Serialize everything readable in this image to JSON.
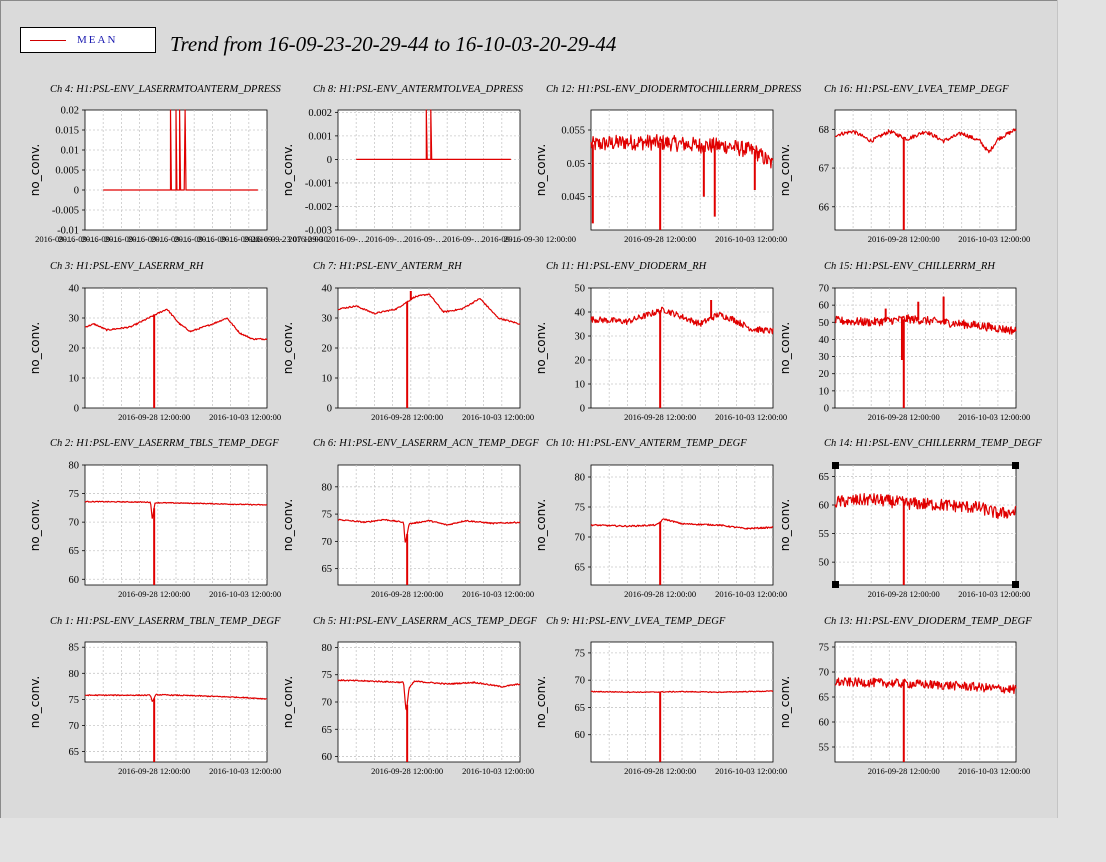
{
  "title": "Trend from 16-09-23-20-29-44 to 16-10-03-20-29-44",
  "legend": {
    "label": "MEAN",
    "color": "#d00000"
  },
  "series_color": "#e00000",
  "chart_data": [
    {
      "id": "ch4",
      "type": "line",
      "title": "Ch 4: H1:PSL-ENV_LASERRMTOANTERM_DPRESS",
      "ylabel": "no_conv.",
      "ylim": [
        -0.01,
        0.02
      ],
      "yticks": [
        0.02,
        0.015,
        0.01,
        0.005,
        0,
        -0.005,
        -0.01
      ],
      "ytick_labels": [
        "0.02",
        "0.015",
        "0.01",
        "0.005",
        "0",
        "-0.005",
        "-0.01"
      ],
      "xticks": [
        "2016-09-…",
        "2016-09-…",
        "2016-09-…",
        "2016-09-…",
        "2016-09-…",
        "2016-09-…",
        "2016-09-…",
        "2016-09-…",
        "2016-09-…",
        "2016-09-…",
        "2016-09-23 07 12:00"
      ],
      "x_span": [
        0.1,
        0.95
      ],
      "points": [
        [
          0.1,
          0
        ],
        [
          0.47,
          0
        ],
        [
          0.47,
          0.021
        ],
        [
          0.475,
          0
        ],
        [
          0.5,
          0
        ],
        [
          0.5,
          0.021
        ],
        [
          0.505,
          0
        ],
        [
          0.52,
          0
        ],
        [
          0.52,
          0.021
        ],
        [
          0.525,
          0
        ],
        [
          0.545,
          0
        ],
        [
          0.55,
          0.021
        ],
        [
          0.555,
          0
        ],
        [
          0.58,
          0
        ],
        [
          0.95,
          0
        ]
      ]
    },
    {
      "id": "ch8",
      "type": "line",
      "title": "Ch 8: H1:PSL-ENV_ANTERMTOLVEA_DPRESS",
      "ylabel": "no_conv.",
      "ylim": [
        -0.003,
        0.0021
      ],
      "yticks": [
        0.002,
        0.001,
        0,
        -0.001,
        -0.002,
        -0.003
      ],
      "ytick_labels": [
        "0.002",
        "0.001",
        "0",
        "-0.001",
        "-0.002",
        "-0.003"
      ],
      "xticks": [
        "2016-09-30",
        "2016-09-…",
        "2016-09-…",
        "2016-09-…",
        "2016-09-…",
        "2016-09-…",
        "2016-09-30 12:00:00"
      ],
      "x_span": [
        0.1,
        0.95
      ],
      "points": [
        [
          0.1,
          0
        ],
        [
          0.485,
          0
        ],
        [
          0.485,
          0.0021
        ],
        [
          0.49,
          0
        ],
        [
          0.51,
          0
        ],
        [
          0.51,
          0.0021
        ],
        [
          0.515,
          0
        ],
        [
          0.95,
          0
        ]
      ]
    },
    {
      "id": "ch12",
      "type": "line",
      "title": "Ch 12: H1:PSL-ENV_DIODERMTOCHILLERRM_DPRESS",
      "ylabel": "no_conv.",
      "ylim": [
        0.04,
        0.058
      ],
      "yticks": [
        0.055,
        0.05,
        0.045
      ],
      "ytick_labels": [
        "0.055",
        "0.05",
        "0.045"
      ],
      "xticks": [
        "2016-09-28 12:00:00",
        "2016-10-03 12:00:00"
      ],
      "noise": 0.0012,
      "baseline": [
        [
          0,
          0.0528
        ],
        [
          0.2,
          0.0532
        ],
        [
          0.4,
          0.0531
        ],
        [
          0.6,
          0.0527
        ],
        [
          0.75,
          0.0526
        ],
        [
          0.9,
          0.0518
        ],
        [
          1,
          0.0498
        ]
      ],
      "spikes": [
        [
          0.38,
          0.04
        ],
        [
          0.01,
          0.041
        ],
        [
          0.62,
          0.045
        ],
        [
          0.68,
          0.042
        ],
        [
          0.9,
          0.046
        ]
      ]
    },
    {
      "id": "ch16",
      "type": "line",
      "title": "Ch 16: H1:PSL-ENV_LVEA_TEMP_DEGF",
      "ylabel": "no_conv.",
      "ylim": [
        65.4,
        68.5
      ],
      "yticks": [
        68,
        67,
        66
      ],
      "ytick_labels": [
        "68",
        "67",
        "66"
      ],
      "xticks": [
        "2016-09-28 12:00:00",
        "2016-10-03 12:00:00"
      ],
      "noise": 0.05,
      "baseline": [
        [
          0,
          67.85
        ],
        [
          0.1,
          67.95
        ],
        [
          0.2,
          67.7
        ],
        [
          0.3,
          67.95
        ],
        [
          0.4,
          67.75
        ],
        [
          0.5,
          67.95
        ],
        [
          0.6,
          67.7
        ],
        [
          0.7,
          67.9
        ],
        [
          0.8,
          67.7
        ],
        [
          0.85,
          67.4
        ],
        [
          0.9,
          67.75
        ],
        [
          1,
          68.0
        ]
      ],
      "spikes": [
        [
          0.38,
          65.4
        ]
      ]
    },
    {
      "id": "ch3",
      "type": "line",
      "title": "Ch 3: H1:PSL-ENV_LASERRM_RH",
      "ylabel": "no_conv.",
      "ylim": [
        0,
        40
      ],
      "yticks": [
        40,
        30,
        20,
        10,
        0
      ],
      "ytick_labels": [
        "40",
        "30",
        "20",
        "10",
        "0"
      ],
      "xticks": [
        "2016-09-28 12:00:00",
        "2016-10-03 12:00:00"
      ],
      "noise": 0.25,
      "baseline": [
        [
          0,
          27
        ],
        [
          0.05,
          28
        ],
        [
          0.12,
          26
        ],
        [
          0.25,
          27
        ],
        [
          0.35,
          30
        ],
        [
          0.45,
          33
        ],
        [
          0.52,
          28
        ],
        [
          0.58,
          25.5
        ],
        [
          0.7,
          28
        ],
        [
          0.78,
          30
        ],
        [
          0.85,
          25
        ],
        [
          0.92,
          23
        ],
        [
          1,
          23
        ]
      ],
      "spikes": [
        [
          0.38,
          0
        ]
      ]
    },
    {
      "id": "ch7",
      "type": "line",
      "title": "Ch 7: H1:PSL-ENV_ANTERM_RH",
      "ylabel": "no_conv.",
      "ylim": [
        0,
        40
      ],
      "yticks": [
        40,
        30,
        20,
        10,
        0
      ],
      "ytick_labels": [
        "40",
        "30",
        "20",
        "10",
        "0"
      ],
      "xticks": [
        "2016-09-28 12:00:00",
        "2016-10-03 12:00:00"
      ],
      "noise": 0.25,
      "baseline": [
        [
          0,
          33
        ],
        [
          0.1,
          34
        ],
        [
          0.2,
          31.5
        ],
        [
          0.32,
          33
        ],
        [
          0.42,
          37
        ],
        [
          0.5,
          38
        ],
        [
          0.58,
          32
        ],
        [
          0.68,
          33
        ],
        [
          0.78,
          36.5
        ],
        [
          0.88,
          30
        ],
        [
          1,
          28
        ]
      ],
      "spikes": [
        [
          0.38,
          0
        ],
        [
          0.4,
          39
        ]
      ]
    },
    {
      "id": "ch11",
      "type": "line",
      "title": "Ch 11: H1:PSL-ENV_DIODERM_RH",
      "ylabel": "no_conv.",
      "ylim": [
        0,
        50
      ],
      "yticks": [
        50,
        40,
        30,
        20,
        10,
        0
      ],
      "ytick_labels": [
        "50",
        "40",
        "30",
        "20",
        "10",
        "0"
      ],
      "xticks": [
        "2016-09-28 12:00:00",
        "2016-10-03 12:00:00"
      ],
      "noise": 1.3,
      "baseline": [
        [
          0,
          37
        ],
        [
          0.2,
          36
        ],
        [
          0.4,
          41
        ],
        [
          0.5,
          38
        ],
        [
          0.6,
          35
        ],
        [
          0.7,
          39
        ],
        [
          0.78,
          37
        ],
        [
          0.88,
          33
        ],
        [
          1,
          32
        ]
      ],
      "spikes": [
        [
          0.38,
          0
        ],
        [
          0.66,
          45
        ]
      ]
    },
    {
      "id": "ch15",
      "type": "line",
      "title": "Ch 15: H1:PSL-ENV_CHILLERRM_RH",
      "ylabel": "no_conv.",
      "ylim": [
        0,
        70
      ],
      "yticks": [
        70,
        60,
        50,
        40,
        30,
        20,
        10,
        0
      ],
      "ytick_labels": [
        "70",
        "60",
        "50",
        "40",
        "30",
        "20",
        "10",
        "0"
      ],
      "xticks": [
        "2016-09-28 12:00:00",
        "2016-10-03 12:00:00"
      ],
      "noise": 2.5,
      "baseline": [
        [
          0,
          51
        ],
        [
          0.2,
          50
        ],
        [
          0.4,
          52
        ],
        [
          0.6,
          50
        ],
        [
          0.8,
          48
        ],
        [
          1,
          45
        ]
      ],
      "spikes": [
        [
          0.38,
          0
        ],
        [
          0.37,
          28
        ],
        [
          0.46,
          62
        ],
        [
          0.6,
          65
        ],
        [
          0.28,
          58
        ]
      ]
    },
    {
      "id": "ch2",
      "type": "line",
      "title": "Ch 2: H1:PSL-ENV_LASERRM_TBLS_TEMP_DEGF",
      "ylabel": "no_conv.",
      "ylim": [
        59,
        80
      ],
      "yticks": [
        80,
        75,
        70,
        65,
        60
      ],
      "ytick_labels": [
        "80",
        "75",
        "70",
        "65",
        "60"
      ],
      "xticks": [
        "2016-09-28 12:00:00",
        "2016-10-03 12:00:00"
      ],
      "noise": 0.08,
      "baseline": [
        [
          0,
          73.6
        ],
        [
          0.36,
          73.5
        ],
        [
          0.37,
          70.5
        ],
        [
          0.385,
          73.4
        ],
        [
          0.6,
          73.3
        ],
        [
          1,
          73.0
        ]
      ],
      "spikes": [
        [
          0.38,
          59
        ]
      ]
    },
    {
      "id": "ch6",
      "type": "line",
      "title": "Ch 6: H1:PSL-ENV_LASERRM_ACN_TEMP_DEGF",
      "ylabel": "no_conv.",
      "ylim": [
        62,
        84
      ],
      "yticks": [
        80,
        75,
        70,
        65
      ],
      "ytick_labels": [
        "80",
        "75",
        "70",
        "65"
      ],
      "xticks": [
        "2016-09-28 12:00:00",
        "2016-10-03 12:00:00"
      ],
      "noise": 0.12,
      "baseline": [
        [
          0,
          74
        ],
        [
          0.15,
          73.5
        ],
        [
          0.25,
          74
        ],
        [
          0.36,
          73.5
        ],
        [
          0.37,
          69.5
        ],
        [
          0.39,
          73.2
        ],
        [
          0.5,
          73.8
        ],
        [
          0.6,
          73
        ],
        [
          0.7,
          73.8
        ],
        [
          0.85,
          73.3
        ],
        [
          1,
          73.5
        ]
      ],
      "spikes": [
        [
          0.38,
          62
        ]
      ]
    },
    {
      "id": "ch10",
      "type": "line",
      "title": "Ch 10: H1:PSL-ENV_ANTERM_TEMP_DEGF",
      "ylabel": "no_conv.",
      "ylim": [
        62,
        82
      ],
      "yticks": [
        80,
        75,
        70,
        65
      ],
      "ytick_labels": [
        "80",
        "75",
        "70",
        "65"
      ],
      "xticks": [
        "2016-09-28 12:00:00",
        "2016-10-03 12:00:00"
      ],
      "noise": 0.12,
      "baseline": [
        [
          0,
          72
        ],
        [
          0.2,
          71.8
        ],
        [
          0.36,
          72
        ],
        [
          0.4,
          73
        ],
        [
          0.5,
          72.2
        ],
        [
          0.7,
          72
        ],
        [
          0.85,
          71.4
        ],
        [
          1,
          71.6
        ]
      ],
      "spikes": [
        [
          0.38,
          62
        ]
      ]
    },
    {
      "id": "ch14",
      "type": "line",
      "title": "Ch 14: H1:PSL-ENV_CHILLERRM_TEMP_DEGF",
      "ylabel": "no_conv.",
      "ylim": [
        46,
        67
      ],
      "yticks": [
        65,
        60,
        55,
        50
      ],
      "ytick_labels": [
        "65",
        "60",
        "55",
        "50"
      ],
      "xticks": [
        "2016-09-28 12:00:00",
        "2016-10-03 12:00:00"
      ],
      "noise": 1.1,
      "baseline": [
        [
          0,
          60.5
        ],
        [
          0.2,
          61
        ],
        [
          0.4,
          60.3
        ],
        [
          0.6,
          60
        ],
        [
          0.8,
          59.5
        ],
        [
          0.9,
          58.5
        ],
        [
          1,
          58.8
        ]
      ],
      "spikes": [
        [
          0.38,
          46
        ]
      ]
    },
    {
      "id": "ch1",
      "type": "line",
      "title": "Ch 1: H1:PSL-ENV_LASERRM_TBLN_TEMP_DEGF",
      "ylabel": "no_conv.",
      "ylim": [
        63,
        86
      ],
      "yticks": [
        85,
        80,
        75,
        70,
        65
      ],
      "ytick_labels": [
        "85",
        "80",
        "75",
        "70",
        "65"
      ],
      "xticks": [
        "2016-09-28 12:00:00",
        "2016-10-03 12:00:00"
      ],
      "noise": 0.1,
      "baseline": [
        [
          0,
          75.8
        ],
        [
          0.36,
          75.8
        ],
        [
          0.37,
          74.5
        ],
        [
          0.39,
          75.9
        ],
        [
          0.6,
          75.7
        ],
        [
          0.85,
          75.4
        ],
        [
          1,
          75.1
        ]
      ],
      "spikes": [
        [
          0.38,
          63
        ]
      ]
    },
    {
      "id": "ch5",
      "type": "line",
      "title": "Ch 5: H1:PSL-ENV_LASERRM_ACS_TEMP_DEGF",
      "ylabel": "no_conv.",
      "ylim": [
        59,
        81
      ],
      "yticks": [
        80,
        75,
        70,
        65,
        60
      ],
      "ytick_labels": [
        "80",
        "75",
        "70",
        "65",
        "60"
      ],
      "xticks": [
        "2016-09-28 12:00:00",
        "2016-10-03 12:00:00"
      ],
      "noise": 0.12,
      "baseline": [
        [
          0,
          74
        ],
        [
          0.2,
          73.8
        ],
        [
          0.36,
          73.6
        ],
        [
          0.375,
          68
        ],
        [
          0.39,
          72.5
        ],
        [
          0.42,
          73.8
        ],
        [
          0.6,
          73.3
        ],
        [
          0.75,
          73.6
        ],
        [
          0.9,
          72.8
        ],
        [
          1,
          73.3
        ]
      ],
      "spikes": [
        [
          0.38,
          59
        ]
      ]
    },
    {
      "id": "ch9",
      "type": "line",
      "title": "Ch 9: H1:PSL-ENV_LVEA_TEMP_DEGF",
      "ylabel": "no_conv.",
      "ylim": [
        55,
        77
      ],
      "yticks": [
        75,
        70,
        65,
        60
      ],
      "ytick_labels": [
        "75",
        "70",
        "65",
        "60"
      ],
      "xticks": [
        "2016-09-28 12:00:00",
        "2016-10-03 12:00:00"
      ],
      "noise": 0.08,
      "baseline": [
        [
          0,
          67.9
        ],
        [
          0.3,
          67.8
        ],
        [
          0.5,
          67.9
        ],
        [
          0.7,
          67.8
        ],
        [
          1,
          68.0
        ]
      ],
      "spikes": [
        [
          0.38,
          55
        ]
      ]
    },
    {
      "id": "ch13",
      "type": "line",
      "title": "Ch 13: H1:PSL-ENV_DIODERM_TEMP_DEGF",
      "ylabel": "no_conv.",
      "ylim": [
        52,
        76
      ],
      "yticks": [
        75,
        70,
        65,
        60,
        55
      ],
      "ytick_labels": [
        "75",
        "70",
        "65",
        "60",
        "55"
      ],
      "xticks": [
        "2016-09-28 12:00:00",
        "2016-10-03 12:00:00"
      ],
      "noise": 0.9,
      "baseline": [
        [
          0,
          68
        ],
        [
          0.3,
          67.8
        ],
        [
          0.5,
          67.5
        ],
        [
          0.7,
          67.2
        ],
        [
          0.85,
          66.8
        ],
        [
          1,
          66.5
        ]
      ],
      "spikes": [
        [
          0.38,
          52
        ]
      ]
    }
  ]
}
